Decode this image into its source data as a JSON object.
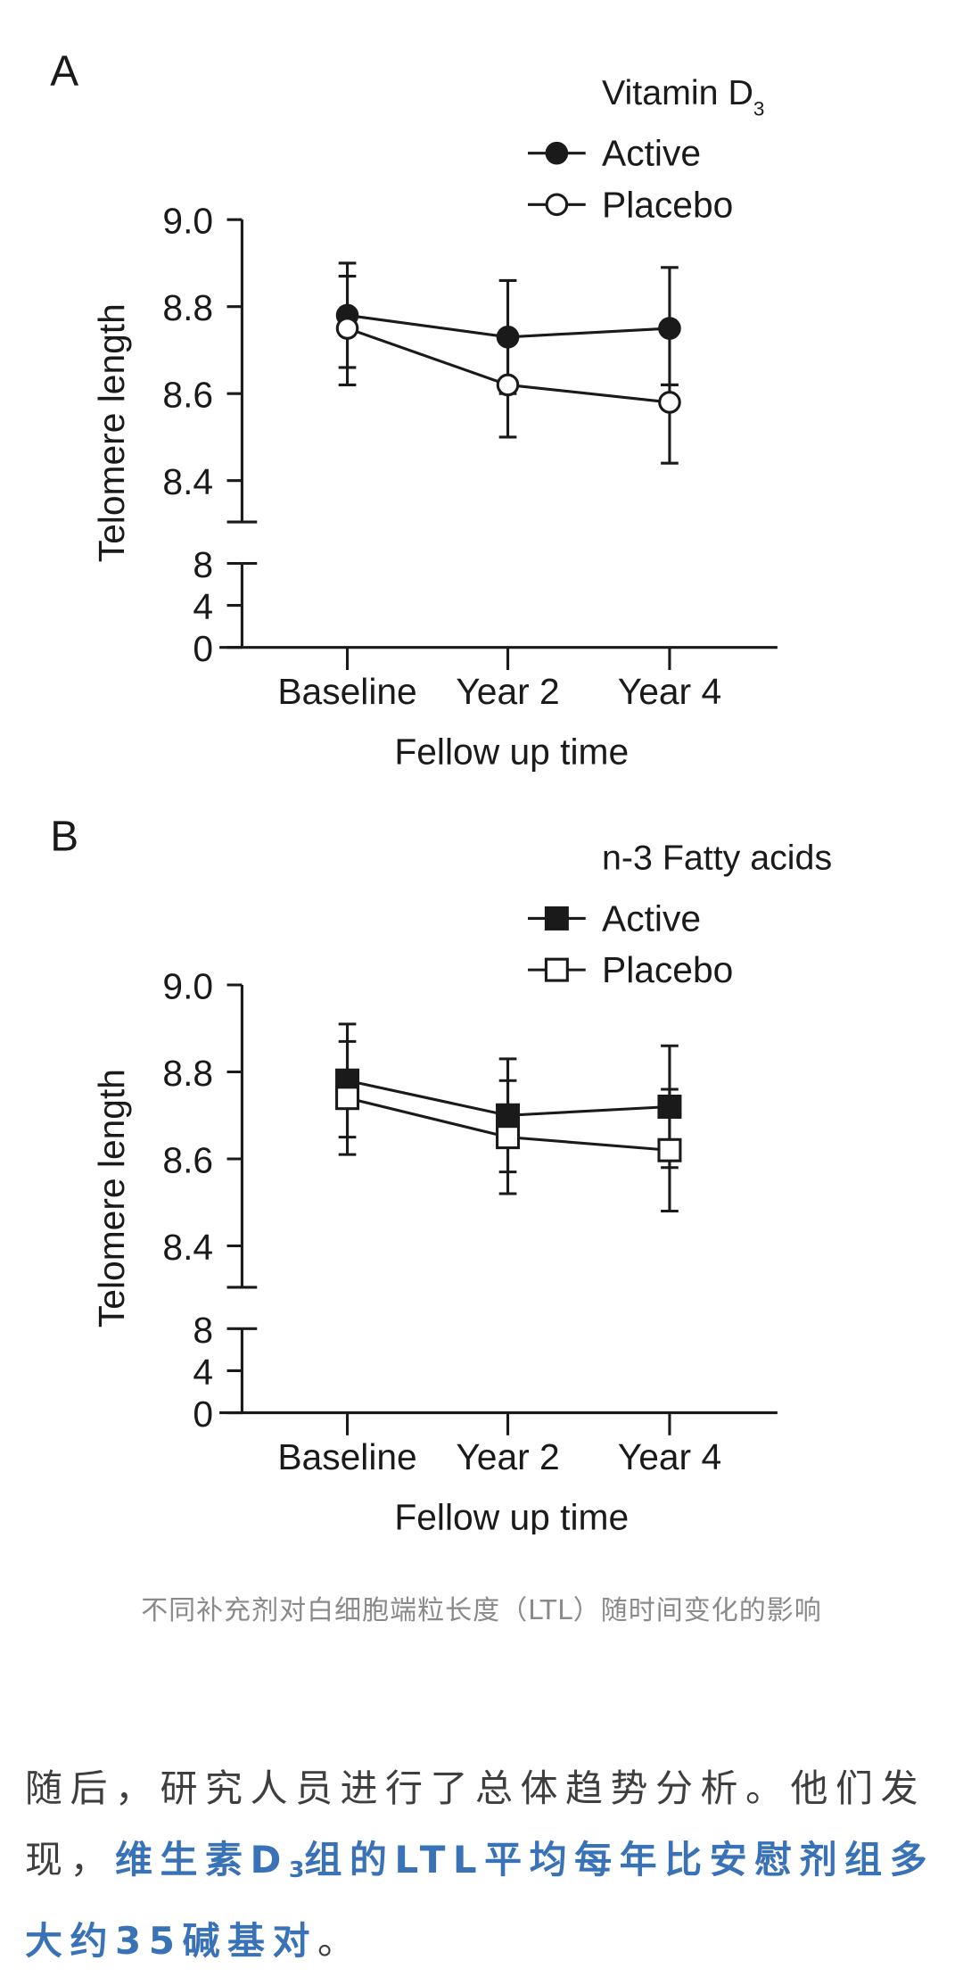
{
  "chart_data": [
    {
      "type": "line",
      "panel_label": "A",
      "legend_title_main": "Vitamin D",
      "legend_title_sub": "3",
      "legend_placement": "top-right",
      "categories": [
        "Baseline",
        "Year 2",
        "Year 4"
      ],
      "xlabel": "Fellow up time",
      "ylabel": "Telomere length",
      "y_ticks_upper": [
        "9.0",
        "8.8",
        "8.6",
        "8.4"
      ],
      "y_ticks_lower": [
        "8",
        "4",
        "0"
      ],
      "ylim_upper": [
        8.3,
        9.0
      ],
      "ylim_lower": [
        0,
        8
      ],
      "axis_break": true,
      "series": [
        {
          "name": "Active",
          "marker": "filled-circle",
          "values": [
            8.78,
            8.73,
            8.75
          ],
          "err_low": [
            8.66,
            8.6,
            8.62
          ],
          "err_high": [
            8.9,
            8.86,
            8.89
          ]
        },
        {
          "name": "Placebo",
          "marker": "open-circle",
          "values": [
            8.75,
            8.62,
            8.58
          ],
          "err_low": [
            8.62,
            8.5,
            8.44
          ],
          "err_high": [
            8.87,
            8.74,
            8.62
          ]
        }
      ]
    },
    {
      "type": "line",
      "panel_label": "B",
      "legend_title_main": "n-3 Fatty acids",
      "legend_title_sub": "",
      "legend_placement": "top-right",
      "categories": [
        "Baseline",
        "Year 2",
        "Year 4"
      ],
      "xlabel": "Fellow up time",
      "ylabel": "Telomere length",
      "y_ticks_upper": [
        "9.0",
        "8.8",
        "8.6",
        "8.4"
      ],
      "y_ticks_lower": [
        "8",
        "4",
        "0"
      ],
      "ylim_upper": [
        8.3,
        9.0
      ],
      "ylim_lower": [
        0,
        8
      ],
      "axis_break": true,
      "series": [
        {
          "name": "Active",
          "marker": "filled-square",
          "values": [
            8.78,
            8.7,
            8.72
          ],
          "err_low": [
            8.65,
            8.57,
            8.58
          ],
          "err_high": [
            8.91,
            8.83,
            8.86
          ]
        },
        {
          "name": "Placebo",
          "marker": "open-square",
          "values": [
            8.74,
            8.65,
            8.62
          ],
          "err_low": [
            8.61,
            8.52,
            8.48
          ],
          "err_high": [
            8.87,
            8.78,
            8.76
          ]
        }
      ]
    }
  ],
  "caption": {
    "text": "不同补充剂对白细胞端粒长度（LTL）随时间变化的影响"
  },
  "paragraph": {
    "lead": "随后，研究人员进行了总体趋势分析。他们发现，",
    "highlight_a": "维生素D",
    "highlight_sub": "3",
    "highlight_b": "组的LTL平均每年比安慰剂组多大约35碱基对",
    "tail": "。"
  },
  "colors": {
    "highlight": "#3a72b8",
    "caption": "#8a8a8a",
    "body_text": "#3e3e3e"
  }
}
